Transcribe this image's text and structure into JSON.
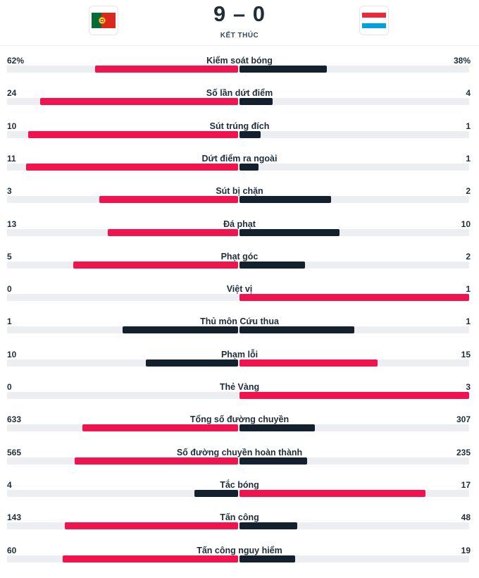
{
  "match": {
    "score": "9 – 0",
    "status": "KẾT THÚC",
    "home_flag": "portugal-flag",
    "away_flag": "luxembourg-flag"
  },
  "colors": {
    "highlight": "#f0134d",
    "secondary": "#13212f",
    "track": "#eceef1"
  },
  "stats": [
    {
      "label": "Kiểm soát bóng",
      "home": "62%",
      "away": "38%",
      "home_frac": 0.62,
      "away_frac": 0.38
    },
    {
      "label": "Số lần dứt điểm",
      "home": "24",
      "away": "4",
      "home_frac": 0.857,
      "away_frac": 0.143
    },
    {
      "label": "Sút trúng đích",
      "home": "10",
      "away": "1",
      "home_frac": 0.909,
      "away_frac": 0.091
    },
    {
      "label": "Dứt điểm ra ngoài",
      "home": "11",
      "away": "1",
      "home_frac": 0.917,
      "away_frac": 0.083
    },
    {
      "label": "Sút bị chặn",
      "home": "3",
      "away": "2",
      "home_frac": 0.6,
      "away_frac": 0.4
    },
    {
      "label": "Đá phạt",
      "home": "13",
      "away": "10",
      "home_frac": 0.565,
      "away_frac": 0.435
    },
    {
      "label": "Phạt góc",
      "home": "5",
      "away": "2",
      "home_frac": 0.714,
      "away_frac": 0.286
    },
    {
      "label": "Việt vị",
      "home": "0",
      "away": "1",
      "home_frac": 0,
      "away_frac": 1
    },
    {
      "label": "Thủ môn Cứu thua",
      "home": "1",
      "away": "1",
      "home_frac": 0.5,
      "away_frac": 0.5
    },
    {
      "label": "Phạm lỗi",
      "home": "10",
      "away": "15",
      "home_frac": 0.4,
      "away_frac": 0.6
    },
    {
      "label": "Thẻ Vàng",
      "home": "0",
      "away": "3",
      "home_frac": 0,
      "away_frac": 1
    },
    {
      "label": "Tổng số đường chuyền",
      "home": "633",
      "away": "307",
      "home_frac": 0.673,
      "away_frac": 0.327
    },
    {
      "label": "Số đường chuyền hoàn thành",
      "home": "565",
      "away": "235",
      "home_frac": 0.706,
      "away_frac": 0.294
    },
    {
      "label": "Tắc bóng",
      "home": "4",
      "away": "17",
      "home_frac": 0.19,
      "away_frac": 0.81
    },
    {
      "label": "Tấn công",
      "home": "143",
      "away": "48",
      "home_frac": 0.749,
      "away_frac": 0.251
    },
    {
      "label": "Tấn công nguy hiểm",
      "home": "60",
      "away": "19",
      "home_frac": 0.759,
      "away_frac": 0.241
    }
  ]
}
